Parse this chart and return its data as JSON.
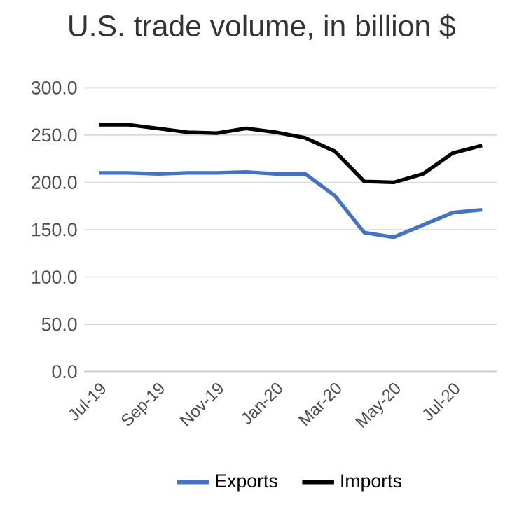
{
  "chart_data": {
    "type": "line",
    "title": "U.S. trade volume, in billion $",
    "categories": [
      "Jul-19",
      null,
      "Sep-19",
      null,
      "Nov-19",
      null,
      "Jan-20",
      null,
      "Mar-20",
      null,
      "May-20",
      null,
      "Jul-20",
      null
    ],
    "series": [
      {
        "name": "Exports",
        "color": "#4472c4",
        "values": [
          210,
          210,
          209,
          210,
          210,
          211,
          209,
          209,
          186,
          147,
          142,
          155,
          168,
          171
        ]
      },
      {
        "name": "Imports",
        "color": "#000000",
        "values": [
          261,
          261,
          257,
          253,
          252,
          257,
          253,
          247,
          233,
          201,
          200,
          209,
          231,
          239
        ]
      }
    ],
    "ylim": [
      0,
      300
    ],
    "yticks": [
      {
        "value": 0,
        "label": "0.0"
      },
      {
        "value": 50,
        "label": "50.0"
      },
      {
        "value": 100,
        "label": "100.0"
      },
      {
        "value": 150,
        "label": "150.0"
      },
      {
        "value": 200,
        "label": "200.0"
      },
      {
        "value": 250,
        "label": "250.0"
      },
      {
        "value": 300,
        "label": "300.0"
      }
    ],
    "grid": "y",
    "legend": "bottom",
    "marker": "none",
    "line_style": "solid"
  }
}
